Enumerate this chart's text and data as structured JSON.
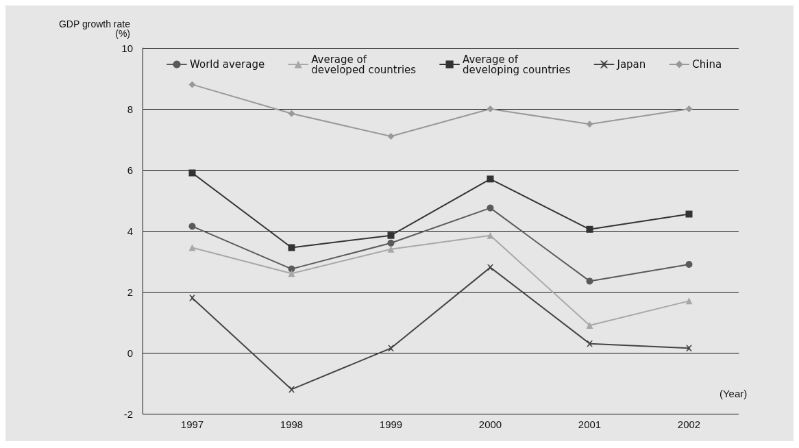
{
  "chart_data": {
    "type": "line",
    "ylabel": "GDP growth rate\n(%)",
    "xlabel": "(Year)",
    "categories": [
      "1997",
      "1998",
      "1999",
      "2000",
      "2001",
      "2002"
    ],
    "ylim": [
      -2,
      10
    ],
    "yticks": [
      -2,
      0,
      2,
      4,
      6,
      8,
      10
    ],
    "grid": "y",
    "legend": "top",
    "line_style": "solid",
    "series": [
      {
        "name": "World average",
        "color": "#5a5a5a",
        "marker": "circle",
        "values": [
          4.15,
          2.75,
          3.6,
          4.75,
          2.35,
          2.9
        ]
      },
      {
        "name": "Average of\ndeveloped countries",
        "color": "#a8a8a8",
        "marker": "triangle",
        "values": [
          3.45,
          2.6,
          3.4,
          3.85,
          0.9,
          1.7
        ]
      },
      {
        "name": "Average of\ndeveloping countries",
        "color": "#333333",
        "marker": "square",
        "values": [
          5.9,
          3.45,
          3.85,
          5.7,
          4.05,
          4.55
        ]
      },
      {
        "name": "Japan",
        "color": "#444444",
        "marker": "cross",
        "values": [
          1.8,
          -1.2,
          0.15,
          2.8,
          0.3,
          0.15
        ]
      },
      {
        "name": "China",
        "color": "#999999",
        "marker": "diamond",
        "values": [
          8.8,
          7.85,
          7.1,
          8.0,
          7.5,
          8.0
        ]
      }
    ]
  }
}
